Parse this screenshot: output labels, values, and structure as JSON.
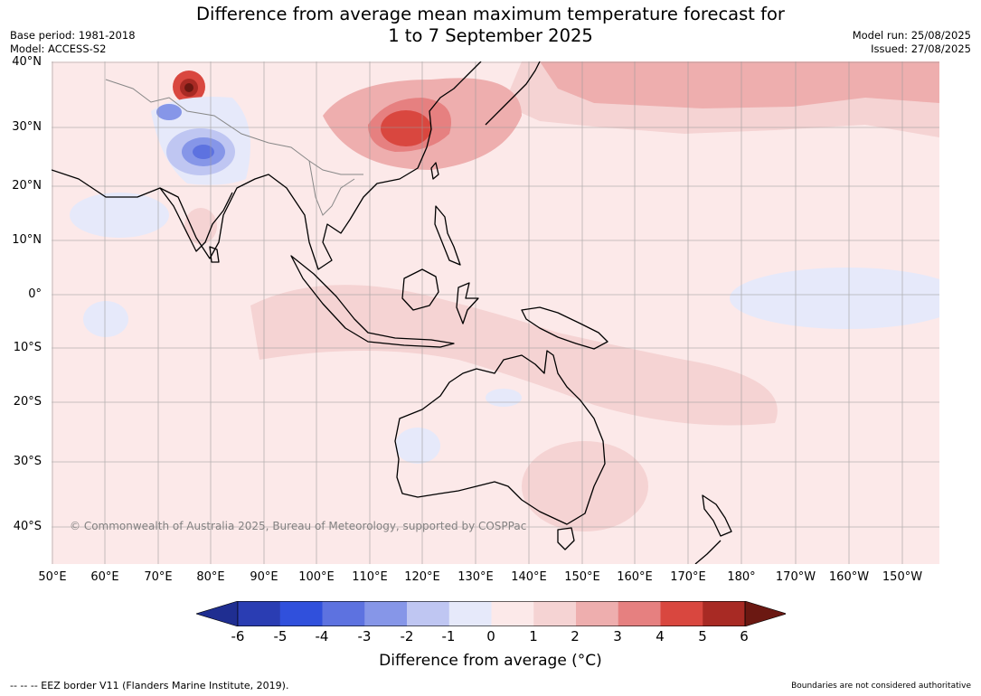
{
  "title": {
    "line1": "Difference from average mean maximum temperature forecast for",
    "line2": "1 to 7 September 2025"
  },
  "meta_left": {
    "base_period": "Base period: 1981-2018",
    "model": "Model: ACCESS-S2"
  },
  "meta_right": {
    "model_run": "Model run: 25/08/2025",
    "issued": "Issued: 27/08/2025"
  },
  "copyright": "© Commonwealth of Australia 2025, Bureau of Meteorology, supported by COSPPac",
  "lat_labels": [
    "40°N",
    "30°N",
    "20°N",
    "10°N",
    "0°",
    "10°S",
    "20°S",
    "30°S",
    "40°S"
  ],
  "lon_labels": [
    "50°E",
    "60°E",
    "70°E",
    "80°E",
    "90°E",
    "100°E",
    "110°E",
    "120°E",
    "130°E",
    "140°E",
    "150°E",
    "160°E",
    "170°E",
    "180°",
    "170°W",
    "160°W",
    "150°W"
  ],
  "colorbar": {
    "label": "Difference from average (°C)",
    "ticks": [
      "-6",
      "-5",
      "-4",
      "-3",
      "-2",
      "-1",
      "0",
      "1",
      "2",
      "3",
      "4",
      "5",
      "6"
    ],
    "colors": [
      "#1f2e91",
      "#2a3db3",
      "#3050dc",
      "#5d72e0",
      "#8696e8",
      "#bfc6f2",
      "#e6e9fa",
      "#fce9e9",
      "#f5d3d3",
      "#eeaeae",
      "#e68080",
      "#d9473f",
      "#a82a24",
      "#6b1812"
    ]
  },
  "footer": {
    "left": "--  --  -- EEZ border V11 (Flanders Marine Institute, 2019).",
    "right": "Boundaries are not considered authoritative"
  }
}
